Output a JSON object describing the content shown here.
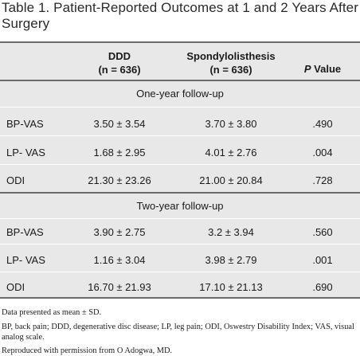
{
  "title": {
    "label": "Table 1.",
    "text": "Patient-Reported Outcomes at 1 and 2 Years After Surgery"
  },
  "columns": [
    {
      "line1": "DDD",
      "line2": "(n = 636)"
    },
    {
      "line1": "Spondylolisthesis",
      "line2": "(n = 636)"
    },
    {
      "p_italic": "P",
      "p_rest": " Value"
    }
  ],
  "sections": [
    {
      "heading": "One-year follow-up",
      "rows": [
        {
          "label": "BP-VAS",
          "ddd": "3.50 ± 3.54",
          "spondy": "3.70 ± 3.80",
          "p": ".490"
        },
        {
          "label": "LP- VAS",
          "ddd": "1.68 ± 2.95",
          "spondy": "4.01 ± 2.76",
          "p": ".004"
        },
        {
          "label": "ODI",
          "ddd": "21.30 ± 23.26",
          "spondy": "21.00 ± 20.84",
          "p": ".728"
        }
      ]
    },
    {
      "heading": "Two-year follow-up",
      "rows": [
        {
          "label": "BP-VAS",
          "ddd": "3.90 ± 2.75",
          "spondy": "3.2 ± 3.94",
          "p": ".560"
        },
        {
          "label": "LP- VAS",
          "ddd": "1.16 ± 3.04",
          "spondy": "3.98 ± 2.79",
          "p": ".001"
        },
        {
          "label": "ODI",
          "ddd": "16.70 ± 21.93",
          "spondy": "17.10 ± 21.13",
          "p": ".690"
        }
      ]
    }
  ],
  "notes": {
    "presented": "Data presented as mean ± SD.",
    "abbreviations": "BP, back pain; DDD, degenerative disc disease; LP, leg pain; ODI, Oswestry Disability Index; VAS, visual analog scale.",
    "permission": "Reproduced with permission from O Adogwa, MD."
  }
}
